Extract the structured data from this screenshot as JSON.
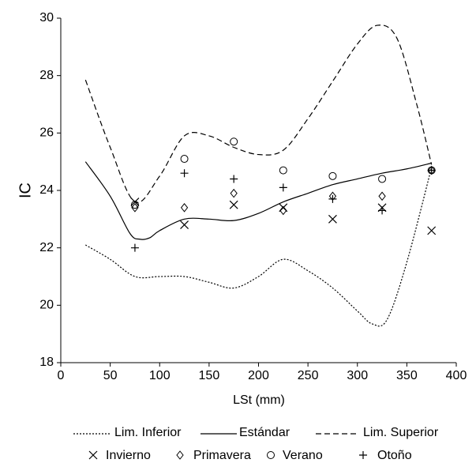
{
  "chart_data": {
    "type": "line",
    "x_label": "LSt (mm)",
    "y_label": "IC",
    "xlim": [
      0,
      400
    ],
    "xticks": [
      0,
      50,
      100,
      150,
      200,
      250,
      300,
      350,
      400
    ],
    "ylim": [
      18,
      30
    ],
    "yticks": [
      18,
      20,
      22,
      24,
      26,
      28,
      30
    ],
    "grid": false,
    "series": [
      {
        "name": "Lim. Inferior",
        "color": "#000000",
        "style": "dotted",
        "x": [
          25,
          50,
          75,
          100,
          125,
          150,
          175,
          200,
          225,
          250,
          275,
          300,
          315,
          330,
          350,
          375
        ],
        "values": [
          22.1,
          21.6,
          21.0,
          21.0,
          21.0,
          20.8,
          20.6,
          21.0,
          21.6,
          21.2,
          20.6,
          19.8,
          19.35,
          19.5,
          21.5,
          24.8
        ]
      },
      {
        "name": "Estándar",
        "color": "#000000",
        "style": "solid",
        "x": [
          25,
          50,
          70,
          80,
          90,
          100,
          125,
          150,
          175,
          200,
          225,
          250,
          275,
          300,
          325,
          350,
          375
        ],
        "values": [
          25.0,
          23.8,
          22.5,
          22.3,
          22.35,
          22.6,
          23.0,
          23.0,
          22.95,
          23.2,
          23.6,
          23.9,
          24.2,
          24.4,
          24.6,
          24.75,
          24.95
        ]
      },
      {
        "name": "Lim. Superior",
        "color": "#000000",
        "style": "dashed",
        "x": [
          25,
          50,
          75,
          100,
          125,
          150,
          175,
          200,
          225,
          250,
          275,
          300,
          320,
          340,
          360,
          375
        ],
        "values": [
          27.85,
          25.5,
          23.6,
          24.5,
          25.9,
          25.9,
          25.5,
          25.25,
          25.4,
          26.5,
          27.8,
          29.1,
          29.75,
          29.3,
          27.0,
          24.9
        ]
      },
      {
        "name": "Invierno",
        "color": "#000000",
        "marker": "x",
        "x": [
          75,
          125,
          175,
          225,
          275,
          325,
          375
        ],
        "values": [
          23.6,
          22.8,
          23.5,
          23.4,
          23.0,
          23.4,
          22.6
        ]
      },
      {
        "name": "Primavera",
        "color": "#000000",
        "marker": "diamond",
        "x": [
          75,
          125,
          175,
          225,
          275,
          325,
          375
        ],
        "values": [
          23.4,
          23.4,
          23.9,
          23.3,
          23.8,
          23.8,
          24.7
        ]
      },
      {
        "name": "Verano",
        "color": "#000000",
        "marker": "circle",
        "x": [
          75,
          125,
          175,
          225,
          275,
          325,
          375
        ],
        "values": [
          23.5,
          25.1,
          25.7,
          24.7,
          24.5,
          24.4,
          24.7
        ]
      },
      {
        "name": "Otoño",
        "color": "#000000",
        "marker": "plus",
        "x": [
          75,
          125,
          175,
          225,
          275,
          325,
          375
        ],
        "values": [
          22.0,
          24.6,
          24.4,
          24.1,
          23.7,
          23.3,
          24.7
        ]
      }
    ]
  }
}
